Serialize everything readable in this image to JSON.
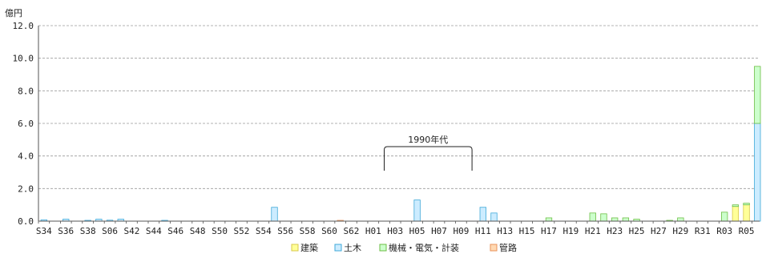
{
  "chart_data": {
    "type": "bar",
    "stacked": true,
    "unit_label": "億円",
    "ylim": [
      0,
      12
    ],
    "y_ticks": [
      "0.0",
      "2.0",
      "4.0",
      "6.0",
      "8.0",
      "10.0",
      "12.0"
    ],
    "grid": "horizontal dashed",
    "legend_position": "bottom",
    "categories": [
      "S34",
      "S35",
      "S36",
      "S37",
      "S38",
      "S39",
      "S06",
      "S41",
      "S42",
      "S43",
      "S44",
      "S45",
      "S46",
      "S47",
      "S48",
      "S49",
      "S50",
      "S51",
      "S52",
      "S53",
      "S54",
      "S55",
      "S56",
      "S57",
      "S58",
      "S59",
      "S60",
      "S61",
      "S62",
      "S63",
      "H01",
      "H02",
      "H03",
      "H04",
      "H05",
      "H06",
      "H07",
      "H08",
      "H09",
      "H10",
      "H11",
      "H12",
      "H13",
      "H14",
      "H15",
      "H16",
      "H17",
      "H18",
      "H19",
      "H20",
      "H21",
      "H22",
      "H23",
      "H24",
      "H25",
      "H26",
      "H27",
      "H28",
      "H29",
      "H30",
      "R31",
      "R02",
      "R03",
      "R04",
      "R05",
      "R06"
    ],
    "x_tick_labels": [
      "S34",
      "S36",
      "S38",
      "S06",
      "S42",
      "S44",
      "S46",
      "S48",
      "S50",
      "S52",
      "S54",
      "S56",
      "S58",
      "S60",
      "S62",
      "H01",
      "H03",
      "H05",
      "H07",
      "H09",
      "H11",
      "H13",
      "H15",
      "H17",
      "H19",
      "H21",
      "H23",
      "H25",
      "H27",
      "H29",
      "R31",
      "R03",
      "R05"
    ],
    "series": [
      {
        "name": "建築",
        "color": "#FFFF99",
        "stroke": "#D8C84A",
        "values": [
          0,
          0,
          0,
          0,
          0,
          0,
          0,
          0,
          0,
          0,
          0,
          0,
          0,
          0,
          0,
          0,
          0,
          0,
          0,
          0,
          0,
          0,
          0,
          0,
          0,
          0,
          0,
          0,
          0,
          0,
          0,
          0,
          0,
          0,
          0,
          0,
          0,
          0,
          0,
          0,
          0,
          0,
          0,
          0,
          0,
          0,
          0,
          0,
          0,
          0,
          0,
          0,
          0,
          0,
          0,
          0,
          0,
          0,
          0,
          0,
          0,
          0,
          0,
          0.9,
          1.0,
          0
        ]
      },
      {
        "name": "土木",
        "color": "#CCECFF",
        "stroke": "#3FA9D8",
        "values": [
          0.08,
          0,
          0.12,
          0,
          0.05,
          0.12,
          0.06,
          0.12,
          0,
          0,
          0,
          0.05,
          0,
          0,
          0,
          0,
          0,
          0,
          0,
          0,
          0,
          0.85,
          0,
          0,
          0,
          0,
          0,
          0,
          0,
          0,
          0,
          0,
          0,
          0,
          1.3,
          0,
          0,
          0,
          0,
          0,
          0.85,
          0.5,
          0,
          0,
          0,
          0,
          0,
          0,
          0,
          0,
          0,
          0,
          0,
          0,
          0,
          0,
          0,
          0,
          0,
          0,
          0,
          0,
          0,
          0,
          0,
          6.0
        ]
      },
      {
        "name": "機械・電気・計装",
        "color": "#CCFFCC",
        "stroke": "#6DBE45",
        "values": [
          0,
          0,
          0,
          0,
          0,
          0,
          0,
          0,
          0,
          0,
          0,
          0,
          0,
          0,
          0,
          0,
          0,
          0,
          0,
          0,
          0,
          0,
          0,
          0,
          0,
          0,
          0,
          0,
          0,
          0,
          0,
          0,
          0,
          0,
          0,
          0,
          0,
          0,
          0,
          0,
          0,
          0,
          0,
          0,
          0,
          0,
          0.2,
          0,
          0,
          0,
          0.5,
          0.45,
          0.2,
          0.2,
          0.12,
          0,
          0,
          0.05,
          0.2,
          0,
          0,
          0,
          0.55,
          0.1,
          0.1,
          3.5
        ]
      },
      {
        "name": "管路",
        "color": "#FFD9B3",
        "stroke": "#E8925A",
        "values": [
          0,
          0,
          0,
          0,
          0,
          0,
          0,
          0,
          0,
          0,
          0,
          0,
          0,
          0,
          0,
          0,
          0,
          0,
          0,
          0,
          0,
          0,
          0,
          0,
          0,
          0,
          0,
          0.05,
          0,
          0,
          0,
          0,
          0,
          0,
          0,
          0,
          0,
          0,
          0,
          0,
          0,
          0,
          0,
          0,
          0,
          0,
          0,
          0,
          0,
          0,
          0,
          0,
          0,
          0,
          0,
          0,
          0,
          0,
          0,
          0,
          0,
          0,
          0,
          0,
          0,
          0
        ]
      }
    ],
    "annotations": [
      {
        "text": "1990年代",
        "from": "H02",
        "to": "H10"
      }
    ]
  }
}
